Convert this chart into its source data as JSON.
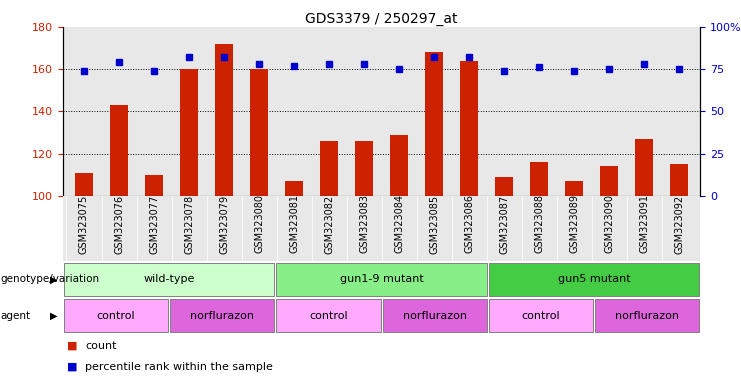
{
  "title": "GDS3379 / 250297_at",
  "samples": [
    "GSM323075",
    "GSM323076",
    "GSM323077",
    "GSM323078",
    "GSM323079",
    "GSM323080",
    "GSM323081",
    "GSM323082",
    "GSM323083",
    "GSM323084",
    "GSM323085",
    "GSM323086",
    "GSM323087",
    "GSM323088",
    "GSM323089",
    "GSM323090",
    "GSM323091",
    "GSM323092"
  ],
  "counts": [
    111,
    143,
    110,
    160,
    172,
    160,
    107,
    126,
    126,
    129,
    168,
    164,
    109,
    116,
    107,
    114,
    127,
    115
  ],
  "percentile_ranks": [
    74,
    79,
    74,
    82,
    82,
    78,
    77,
    78,
    78,
    75,
    82,
    82,
    74,
    76,
    74,
    75,
    78,
    75
  ],
  "bar_color": "#cc2200",
  "dot_color": "#0000cc",
  "ylim_left": [
    100,
    180
  ],
  "ylim_right": [
    0,
    100
  ],
  "yticks_left": [
    100,
    120,
    140,
    160,
    180
  ],
  "yticks_right": [
    0,
    25,
    50,
    75,
    100
  ],
  "ytick_labels_right": [
    "0",
    "25",
    "50",
    "75",
    "100%"
  ],
  "grid_values": [
    120,
    140,
    160
  ],
  "genotype_groups": [
    {
      "label": "wild-type",
      "start": 0,
      "end": 6,
      "color": "#ccffcc"
    },
    {
      "label": "gun1-9 mutant",
      "start": 6,
      "end": 12,
      "color": "#88ee88"
    },
    {
      "label": "gun5 mutant",
      "start": 12,
      "end": 18,
      "color": "#44cc44"
    }
  ],
  "agent_groups": [
    {
      "label": "control",
      "start": 0,
      "end": 3,
      "color": "#ffaaff"
    },
    {
      "label": "norflurazon",
      "start": 3,
      "end": 6,
      "color": "#dd66dd"
    },
    {
      "label": "control",
      "start": 6,
      "end": 9,
      "color": "#ffaaff"
    },
    {
      "label": "norflurazon",
      "start": 9,
      "end": 12,
      "color": "#dd66dd"
    },
    {
      "label": "control",
      "start": 12,
      "end": 15,
      "color": "#ffaaff"
    },
    {
      "label": "norflurazon",
      "start": 15,
      "end": 18,
      "color": "#dd66dd"
    }
  ],
  "legend_count_label": "count",
  "legend_pct_label": "percentile rank within the sample",
  "plot_bg_color": "#e8e8e8",
  "bar_width": 0.5,
  "figsize": [
    7.41,
    3.84
  ],
  "dpi": 100
}
